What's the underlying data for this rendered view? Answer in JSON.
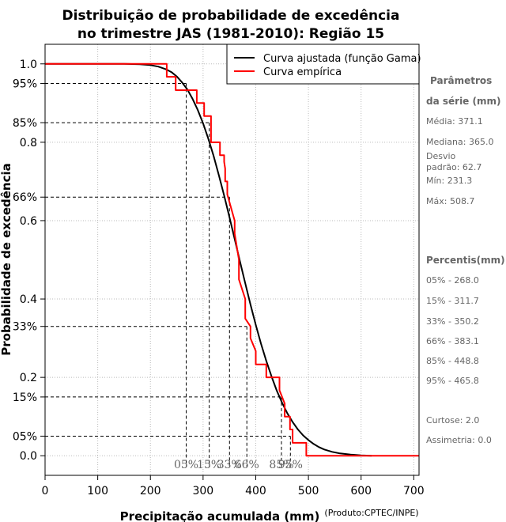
{
  "chart_data": {
    "type": "line",
    "title_line1": "Distribuição de probabilidade de excedência",
    "title_line2": "no trimestre JAS (1981-2010): Região 15",
    "xlabel": "Precipitação acumulada (mm)",
    "ylabel": "Probabilidade de excedência",
    "xlim": [
      0,
      710
    ],
    "ylim": [
      -0.05,
      1.05
    ],
    "x_ticks": [
      0,
      100,
      200,
      300,
      400,
      500,
      600,
      700
    ],
    "x_tick_labels": [
      "0",
      "100",
      "200",
      "300",
      "400",
      "500",
      "600",
      "700"
    ],
    "y_ticks": [
      {
        "value": 0.0,
        "label": "0.0"
      },
      {
        "value": 0.05,
        "label": "05%"
      },
      {
        "value": 0.15,
        "label": "15%"
      },
      {
        "value": 0.2,
        "label": "0.2"
      },
      {
        "value": 0.33,
        "label": "33%"
      },
      {
        "value": 0.4,
        "label": "0.4"
      },
      {
        "value": 0.6,
        "label": "0.6"
      },
      {
        "value": 0.66,
        "label": "66%"
      },
      {
        "value": 0.8,
        "label": "0.8"
      },
      {
        "value": 0.85,
        "label": "85%"
      },
      {
        "value": 0.95,
        "label": "95%"
      },
      {
        "value": 1.0,
        "label": "1.0"
      }
    ],
    "grid": true,
    "legend": {
      "position": "top-right",
      "entries": [
        {
          "name": "Curva ajustada (função Gama)",
          "color": "#000000"
        },
        {
          "name": "Curva empírica",
          "color": "#ff0000"
        }
      ]
    },
    "series": [
      {
        "name": "Curva ajustada (função Gama)",
        "color": "#000000",
        "x": [
          0,
          150,
          180,
          200,
          215,
          230,
          240,
          250,
          260,
          270,
          280,
          290,
          300,
          310,
          320,
          330,
          340,
          350,
          360,
          370,
          380,
          390,
          400,
          410,
          420,
          430,
          440,
          450,
          460,
          470,
          480,
          490,
          500,
          510,
          520,
          530,
          545,
          560,
          580,
          600,
          620
        ],
        "y": [
          1.0,
          1.0,
          0.999,
          0.997,
          0.993,
          0.986,
          0.979,
          0.968,
          0.953,
          0.935,
          0.911,
          0.882,
          0.848,
          0.809,
          0.765,
          0.716,
          0.664,
          0.609,
          0.553,
          0.496,
          0.44,
          0.386,
          0.334,
          0.286,
          0.242,
          0.202,
          0.166,
          0.135,
          0.108,
          0.086,
          0.067,
          0.052,
          0.04,
          0.03,
          0.022,
          0.016,
          0.01,
          0.006,
          0.003,
          0.001,
          0.0
        ]
      },
      {
        "name": "Curva empírica",
        "color": "#ff0000",
        "x": [
          0,
          231,
          231,
          238,
          238,
          248,
          248,
          288,
          288,
          302,
          302,
          315,
          315,
          332,
          332,
          340,
          340,
          342,
          342,
          346,
          346,
          360,
          360,
          368,
          368,
          380,
          380,
          390,
          390,
          400,
          400,
          420,
          420,
          426,
          426,
          445,
          445,
          455,
          455,
          465,
          465,
          470,
          470,
          475,
          475,
          496,
          496,
          509,
          509,
          710
        ],
        "y": [
          1.0,
          1.0,
          0.967,
          0.967,
          0.967,
          0.967,
          0.933,
          0.933,
          0.9,
          0.9,
          0.867,
          0.867,
          0.8,
          0.8,
          0.767,
          0.767,
          0.75,
          0.733,
          0.7,
          0.7,
          0.667,
          0.6,
          0.567,
          0.5,
          0.45,
          0.4,
          0.35,
          0.33,
          0.3,
          0.267,
          0.233,
          0.233,
          0.2,
          0.2,
          0.2,
          0.2,
          0.167,
          0.133,
          0.1,
          0.1,
          0.067,
          0.067,
          0.033,
          0.033,
          0.033,
          0.033,
          0.0,
          0.0,
          0.0,
          0.0
        ]
      }
    ],
    "percentile_markers": [
      {
        "label": "05%",
        "x": 268.0,
        "y": 0.95
      },
      {
        "label": "15%",
        "x": 311.7,
        "y": 0.85
      },
      {
        "label": "33%",
        "x": 350.2,
        "y": 0.66
      },
      {
        "label": "66%",
        "x": 383.1,
        "y": 0.33
      },
      {
        "label": "85%",
        "x": 448.8,
        "y": 0.15
      },
      {
        "label": "95%",
        "x": 465.8,
        "y": 0.05
      }
    ],
    "source_note": "(Produto:CPTEC/INPE)"
  },
  "sidebar": {
    "params_heading_1": "Parâmetros",
    "params_heading_2": "da série (mm)",
    "media": "Média: 371.1",
    "mediana": "Mediana: 365.0",
    "desvio_1": "Desvio",
    "desvio_2": "padrão: 62.7",
    "min": "Mín: 231.3",
    "max": "Máx: 508.7",
    "percentis_heading": "Percentis(mm)",
    "percentis": [
      "05% - 268.0",
      "15% - 311.7",
      "33% - 350.2",
      "66% - 383.1",
      "85% - 448.8",
      "95% - 465.8"
    ],
    "curtose": "Curtose: 2.0",
    "assimetria": "Assimetria: 0.0"
  }
}
